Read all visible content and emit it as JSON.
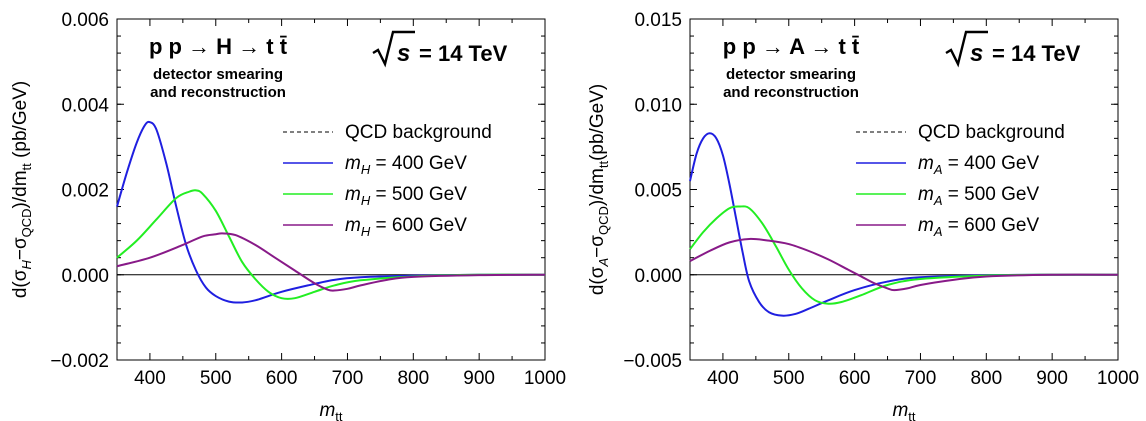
{
  "chart_data": [
    {
      "type": "line",
      "process": "p p → H → t t̄",
      "note_line1": "detector smearing",
      "note_line2": "and reconstruction",
      "energy": "= 14 TeV",
      "energy_symbol": "s",
      "xlabel": "m",
      "xlabel_sub": "tt",
      "ylabel": "d(σH−σQCD)/dm tt (pb/GeV)",
      "ylabel_parts": {
        "pre": "d(σ",
        "sub1": "H",
        "mid": "−σ",
        "sub2": "QCD",
        "post": ")/dm",
        "sub3": "tt",
        "unit": " (pb/GeV)"
      },
      "xlim": [
        350,
        1000
      ],
      "ylim": [
        -0.002,
        0.006
      ],
      "xticks": [
        "400",
        "500",
        "600",
        "700",
        "800",
        "900",
        "1000"
      ],
      "yticks": [
        "0.006",
        "0.004",
        "0.002",
        "0.000",
        "−0.002"
      ],
      "grid": false,
      "legend_position": "right",
      "series": [
        {
          "name": "QCD background",
          "color": "#000000",
          "dashed": true,
          "x": [
            350,
            1000
          ],
          "y": [
            0,
            0
          ]
        },
        {
          "name": "400 GeV",
          "label_mass": "H",
          "color": "#1f1fe0",
          "x": [
            350,
            365,
            380,
            392,
            400,
            410,
            425,
            440,
            455,
            470,
            485,
            500,
            520,
            540,
            560,
            580,
            600,
            640,
            680,
            720,
            800,
            900,
            1000
          ],
          "y": [
            0.0016,
            0.0024,
            0.0031,
            0.0035,
            0.00358,
            0.0034,
            0.0026,
            0.0016,
            0.0007,
            0.0001,
            -0.0003,
            -0.0005,
            -0.00063,
            -0.00065,
            -0.0006,
            -0.0005,
            -0.0004,
            -0.00025,
            -0.00012,
            -6e-05,
            -2e-05,
            0,
            0
          ]
        },
        {
          "name": "500 GeV",
          "label_mass": "H",
          "color": "#22ee22",
          "x": [
            350,
            380,
            410,
            440,
            460,
            470,
            480,
            500,
            520,
            540,
            560,
            580,
            600,
            620,
            650,
            680,
            720,
            800,
            900,
            1000
          ],
          "y": [
            0.0004,
            0.0008,
            0.0013,
            0.0018,
            0.00195,
            0.00198,
            0.0019,
            0.0015,
            0.0009,
            0.0003,
            -0.0001,
            -0.0004,
            -0.00055,
            -0.00055,
            -0.0004,
            -0.00025,
            -0.00013,
            -4e-05,
            0,
            0
          ]
        },
        {
          "name": "600 GeV",
          "label_mass": "H",
          "color": "#881a88",
          "x": [
            350,
            400,
            450,
            480,
            500,
            510,
            530,
            560,
            590,
            620,
            650,
            670,
            680,
            700,
            720,
            760,
            800,
            900,
            1000
          ],
          "y": [
            0.0002,
            0.0004,
            0.0007,
            0.0009,
            0.00095,
            0.00097,
            0.00093,
            0.0007,
            0.0004,
            0.0001,
            -0.0002,
            -0.00035,
            -0.00037,
            -0.00033,
            -0.00025,
            -0.00012,
            -5e-05,
            -1e-05,
            0
          ]
        }
      ]
    },
    {
      "type": "line",
      "process": "p p → A → t t̄",
      "note_line1": "detector smearing",
      "note_line2": "and reconstruction",
      "energy": "= 14 TeV",
      "energy_symbol": "s",
      "xlabel": "m",
      "xlabel_sub": "tt",
      "ylabel": "d(σA−σQCD)/dm tt(pb/GeV)",
      "ylabel_parts": {
        "pre": "d(σ",
        "sub1": "A",
        "mid": "−σ",
        "sub2": "QCD",
        "post": ")/dm",
        "sub3": "tt",
        "unit": "(pb/GeV)"
      },
      "xlim": [
        350,
        1000
      ],
      "ylim": [
        -0.005,
        0.015
      ],
      "xticks": [
        "400",
        "500",
        "600",
        "700",
        "800",
        "900",
        "1000"
      ],
      "yticks": [
        "0.015",
        "0.010",
        "0.005",
        "0.000",
        "−0.005"
      ],
      "grid": false,
      "legend_position": "right",
      "series": [
        {
          "name": "QCD background",
          "color": "#000000",
          "dashed": true,
          "x": [
            350,
            1000
          ],
          "y": [
            0,
            0
          ]
        },
        {
          "name": "400 GeV",
          "label_mass": "A",
          "color": "#1f1fe0",
          "x": [
            350,
            360,
            370,
            380,
            390,
            400,
            410,
            420,
            430,
            440,
            455,
            470,
            490,
            510,
            530,
            560,
            600,
            650,
            700,
            800,
            900,
            1000
          ],
          "y": [
            0.0055,
            0.0071,
            0.008,
            0.0083,
            0.008,
            0.007,
            0.0053,
            0.0033,
            0.0013,
            -0.0004,
            -0.0016,
            -0.0022,
            -0.0024,
            -0.0023,
            -0.002,
            -0.0015,
            -0.0009,
            -0.0004,
            -0.00015,
            -3e-05,
            0,
            0
          ]
        },
        {
          "name": "500 GeV",
          "label_mass": "A",
          "color": "#22ee22",
          "x": [
            350,
            370,
            390,
            410,
            425,
            440,
            460,
            480,
            500,
            520,
            540,
            560,
            580,
            610,
            650,
            700,
            800,
            900,
            1000
          ],
          "y": [
            0.0015,
            0.0025,
            0.0033,
            0.0039,
            0.004,
            0.0039,
            0.003,
            0.0017,
            0.0003,
            -0.0008,
            -0.0015,
            -0.0017,
            -0.0016,
            -0.0012,
            -0.0006,
            -0.00025,
            -5e-05,
            0,
            0
          ]
        },
        {
          "name": "600 GeV",
          "label_mass": "A",
          "color": "#881a88",
          "x": [
            350,
            380,
            410,
            440,
            470,
            500,
            530,
            560,
            590,
            610,
            630,
            650,
            660,
            680,
            700,
            750,
            800,
            900,
            1000
          ],
          "y": [
            0.0008,
            0.0014,
            0.0019,
            0.0021,
            0.002,
            0.0018,
            0.0014,
            0.0009,
            0.0003,
            -0.0001,
            -0.0005,
            -0.0008,
            -0.0009,
            -0.0008,
            -0.0006,
            -0.0003,
            -0.0001,
            0,
            0
          ]
        }
      ]
    }
  ]
}
